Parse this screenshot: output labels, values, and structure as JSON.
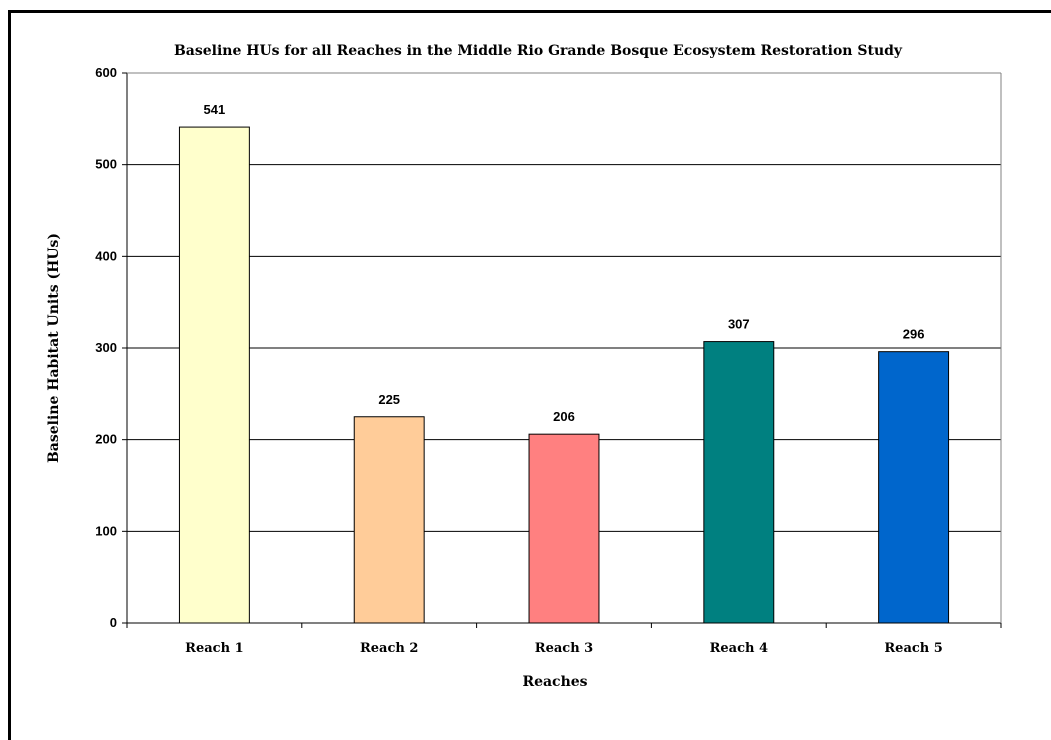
{
  "chart_data": {
    "type": "bar",
    "title": "Baseline HUs for all Reaches in the Middle Rio Grande Bosque Ecosystem Restoration Study",
    "xlabel": "Reaches",
    "ylabel": "Baseline Habitat Units (HUs)",
    "categories": [
      "Reach 1",
      "Reach 2",
      "Reach 3",
      "Reach 4",
      "Reach 5"
    ],
    "values": [
      541,
      225,
      206,
      307,
      296
    ],
    "data_labels": [
      "541",
      "225",
      "206",
      "307",
      "296"
    ],
    "colors": [
      "#FFFFCC",
      "#FFCC99",
      "#FF8080",
      "#008080",
      "#0066CC"
    ],
    "ylim": [
      0,
      600
    ],
    "yticks": [
      0,
      100,
      200,
      300,
      400,
      500,
      600
    ],
    "grid": true,
    "legend": "none"
  }
}
